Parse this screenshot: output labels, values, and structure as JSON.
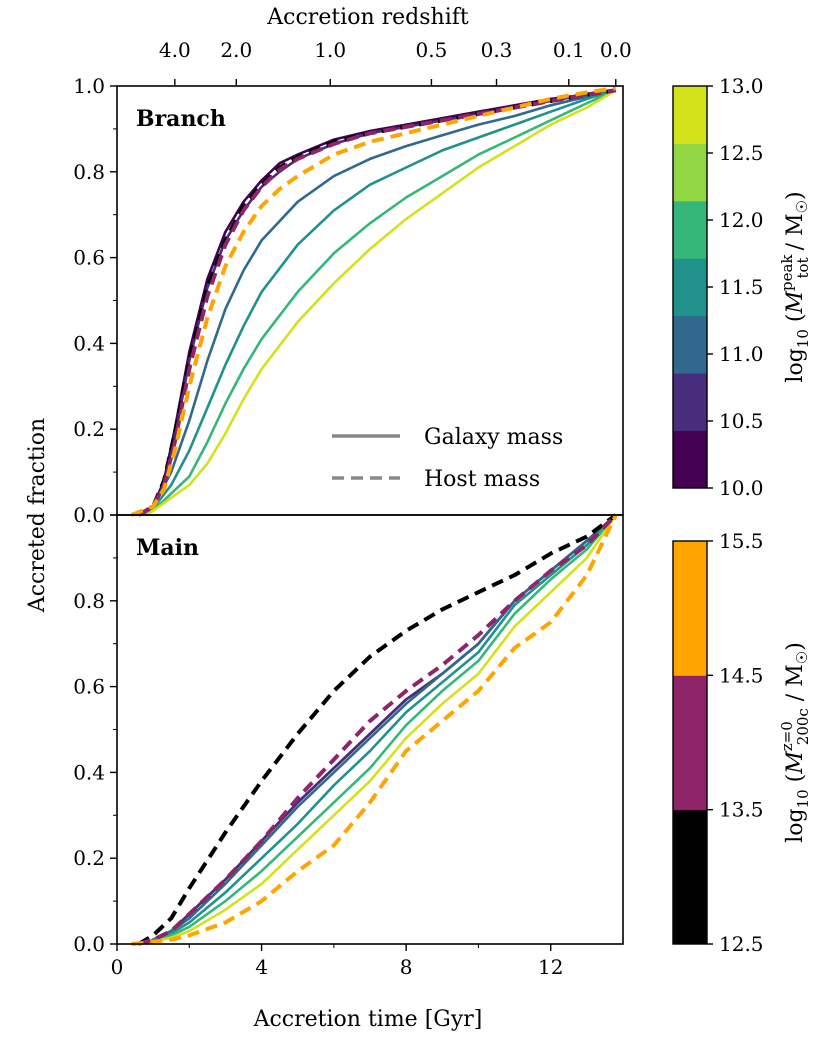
{
  "chart_data": {
    "type": "line",
    "xlabel": "Accretion time [Gyr]",
    "ylabel": "Accreted fraction",
    "top_axis_label": "Accretion redshift",
    "xlim": [
      0,
      14
    ],
    "ylim": [
      0.0,
      1.0
    ],
    "x_ticks": [
      0,
      4,
      8,
      12
    ],
    "x_tick_labels": [
      "0",
      "4",
      "8",
      "12"
    ],
    "y_ticks": [
      0.0,
      0.2,
      0.4,
      0.6,
      0.8,
      1.0
    ],
    "y_tick_labels": [
      "0.0",
      "0.2",
      "0.4",
      "0.6",
      "0.8",
      "1.0"
    ],
    "top_ticks": [
      {
        "label": "4.0",
        "x": 1.6
      },
      {
        "label": "2.0",
        "x": 3.3
      },
      {
        "label": "1.0",
        "x": 5.9
      },
      {
        "label": "0.5",
        "x": 8.7
      },
      {
        "label": "0.3",
        "x": 10.5
      },
      {
        "label": "0.1",
        "x": 12.5
      },
      {
        "label": "0.0",
        "x": 13.8
      }
    ],
    "legend": [
      {
        "label": "Galaxy mass",
        "style": "solid"
      },
      {
        "label": "Host mass",
        "style": "dashed"
      }
    ],
    "colorbars": [
      {
        "label_parts": [
          "log",
          "10",
          " (",
          "M",
          "peak",
          "tot",
          " / M",
          "☉",
          ")"
        ],
        "ticks": [
          "10.0",
          "10.5",
          "11.0",
          "11.5",
          "12.0",
          "12.5",
          "13.0"
        ],
        "colors": [
          "#440154",
          "#472d7b",
          "#31688e",
          "#21918c",
          "#35b779",
          "#90d743",
          "#d4e21a"
        ]
      },
      {
        "label_parts": [
          "log",
          "10",
          " (",
          "M",
          "z=0",
          "200c",
          " / M",
          "☉",
          ")"
        ],
        "ticks": [
          "12.5",
          "13.5",
          "14.5",
          "15.5"
        ],
        "colors": [
          "#000000",
          "#8f2469",
          "#ffa500"
        ]
      }
    ],
    "panels": [
      {
        "label": "Branch",
        "series": [
          {
            "name": "galaxy 10.0-10.5",
            "color": "#440154",
            "style": "solid",
            "x": [
              0.7,
              1.0,
              1.3,
              1.6,
              2.0,
              2.5,
              3.0,
              3.5,
              4.0,
              4.5,
              5.0,
              6.0,
              7.0,
              8.0,
              9.0,
              10.0,
              11.0,
              12.0,
              13.0,
              13.8
            ],
            "y": [
              0,
              0.02,
              0.08,
              0.2,
              0.38,
              0.55,
              0.66,
              0.73,
              0.78,
              0.82,
              0.84,
              0.875,
              0.895,
              0.91,
              0.925,
              0.94,
              0.955,
              0.97,
              0.98,
              0.99
            ]
          },
          {
            "name": "galaxy 10.5-11.0",
            "color": "#472d7b",
            "style": "solid",
            "x": [
              0.7,
              1.0,
              1.3,
              1.6,
              2.0,
              2.5,
              3.0,
              3.5,
              4.0,
              4.5,
              5.0,
              6.0,
              7.0,
              8.0,
              9.0,
              10.0,
              11.0,
              12.0,
              13.0,
              13.8
            ],
            "y": [
              0,
              0.02,
              0.07,
              0.18,
              0.36,
              0.53,
              0.64,
              0.71,
              0.765,
              0.8,
              0.83,
              0.865,
              0.89,
              0.905,
              0.92,
              0.935,
              0.95,
              0.965,
              0.98,
              0.99
            ]
          },
          {
            "name": "galaxy 11.0-11.5",
            "color": "#31688e",
            "style": "solid",
            "x": [
              0.8,
              1.0,
              1.5,
              2.0,
              2.5,
              3.0,
              3.5,
              4.0,
              5.0,
              6.0,
              7.0,
              8.0,
              9.0,
              10.0,
              11.0,
              12.0,
              13.0,
              13.8
            ],
            "y": [
              0,
              0.02,
              0.1,
              0.22,
              0.36,
              0.48,
              0.57,
              0.64,
              0.73,
              0.79,
              0.83,
              0.86,
              0.885,
              0.91,
              0.93,
              0.955,
              0.975,
              0.99
            ]
          },
          {
            "name": "galaxy 11.5-12.0",
            "color": "#21918c",
            "style": "solid",
            "x": [
              0.8,
              1.0,
              1.5,
              2.0,
              2.5,
              3.0,
              3.5,
              4.0,
              5.0,
              6.0,
              7.0,
              8.0,
              9.0,
              10.0,
              11.0,
              12.0,
              13.0,
              13.8
            ],
            "y": [
              0,
              0.015,
              0.07,
              0.15,
              0.25,
              0.35,
              0.44,
              0.52,
              0.63,
              0.71,
              0.77,
              0.81,
              0.85,
              0.88,
              0.91,
              0.94,
              0.97,
              0.99
            ]
          },
          {
            "name": "galaxy 12.0-12.5",
            "color": "#35b779",
            "style": "solid",
            "x": [
              0.8,
              1.0,
              1.5,
              2.0,
              2.5,
              3.0,
              3.5,
              4.0,
              5.0,
              6.0,
              7.0,
              8.0,
              9.0,
              10.0,
              11.0,
              12.0,
              13.0,
              13.8
            ],
            "y": [
              0,
              0.01,
              0.05,
              0.09,
              0.17,
              0.26,
              0.34,
              0.41,
              0.52,
              0.61,
              0.68,
              0.74,
              0.79,
              0.84,
              0.88,
              0.92,
              0.96,
              0.99
            ]
          },
          {
            "name": "galaxy 12.5-13.0",
            "color": "#d4e21a",
            "style": "solid",
            "x": [
              0.8,
              1.0,
              1.5,
              2.0,
              2.5,
              3.0,
              3.5,
              4.0,
              5.0,
              6.0,
              7.0,
              8.0,
              9.0,
              10.0,
              11.0,
              12.0,
              13.0,
              13.8
            ],
            "y": [
              0,
              0.01,
              0.04,
              0.07,
              0.12,
              0.19,
              0.27,
              0.34,
              0.45,
              0.54,
              0.62,
              0.69,
              0.75,
              0.81,
              0.86,
              0.91,
              0.95,
              0.99
            ]
          },
          {
            "name": "host 12.5-13.5",
            "color": "#000000",
            "style": "dashed",
            "x": [
              0.6,
              1.0,
              1.3,
              1.6,
              2.0,
              2.5,
              3.0,
              3.5,
              4.0,
              4.5,
              5.0,
              6.0,
              7.0,
              8.0,
              9.0,
              10.0,
              11.0,
              12.0,
              13.0,
              13.8
            ],
            "y": [
              0,
              0.02,
              0.08,
              0.19,
              0.36,
              0.53,
              0.64,
              0.72,
              0.77,
              0.81,
              0.835,
              0.87,
              0.89,
              0.905,
              0.92,
              0.935,
              0.95,
              0.965,
              0.98,
              0.99
            ]
          },
          {
            "name": "host 13.5-14.5",
            "color": "#8f2469",
            "style": "dashed",
            "x": [
              0.6,
              1.0,
              1.3,
              1.6,
              2.0,
              2.5,
              3.0,
              3.5,
              4.0,
              4.5,
              5.0,
              6.0,
              7.0,
              8.0,
              9.0,
              10.0,
              11.0,
              12.0,
              13.0,
              13.8
            ],
            "y": [
              0,
              0.02,
              0.07,
              0.17,
              0.34,
              0.51,
              0.63,
              0.71,
              0.765,
              0.805,
              0.83,
              0.865,
              0.89,
              0.905,
              0.92,
              0.935,
              0.95,
              0.965,
              0.98,
              0.99
            ]
          },
          {
            "name": "host 14.5-15.5",
            "color": "#ffa500",
            "style": "dashed",
            "x": [
              0.4,
              1.0,
              1.3,
              1.6,
              2.0,
              2.5,
              3.0,
              3.5,
              4.0,
              4.5,
              5.0,
              6.0,
              7.0,
              8.0,
              9.0,
              10.0,
              11.0,
              12.0,
              13.0,
              13.8
            ],
            "y": [
              0,
              0.02,
              0.06,
              0.15,
              0.3,
              0.46,
              0.58,
              0.66,
              0.72,
              0.76,
              0.79,
              0.84,
              0.87,
              0.89,
              0.91,
              0.93,
              0.95,
              0.97,
              0.985,
              0.995
            ]
          }
        ]
      },
      {
        "label": "Main",
        "series": [
          {
            "name": "galaxy 10.0-10.5",
            "color": "#440154",
            "style": "solid",
            "x": [
              0.8,
              1.0,
              1.5,
              2.0,
              3.0,
              4.0,
              5.0,
              6.0,
              7.0,
              7.5,
              8.0,
              9.0,
              10.0,
              11.0,
              12.0,
              13.0,
              13.8
            ],
            "y": [
              0,
              0.01,
              0.03,
              0.07,
              0.15,
              0.24,
              0.33,
              0.41,
              0.49,
              0.53,
              0.57,
              0.63,
              0.7,
              0.8,
              0.87,
              0.94,
              1.0
            ]
          },
          {
            "name": "galaxy 10.5-11.0",
            "color": "#472d7b",
            "style": "solid",
            "x": [
              0.8,
              1.0,
              1.5,
              2.0,
              3.0,
              4.0,
              5.0,
              6.0,
              7.0,
              7.5,
              8.0,
              9.0,
              10.0,
              11.0,
              12.0,
              13.0,
              13.8
            ],
            "y": [
              0,
              0.01,
              0.03,
              0.07,
              0.15,
              0.24,
              0.33,
              0.41,
              0.49,
              0.53,
              0.57,
              0.63,
              0.7,
              0.8,
              0.87,
              0.94,
              1.0
            ]
          },
          {
            "name": "galaxy 11.0-11.5",
            "color": "#31688e",
            "style": "solid",
            "x": [
              0.8,
              1.0,
              1.5,
              2.0,
              3.0,
              4.0,
              5.0,
              6.0,
              7.0,
              8.0,
              9.0,
              10.0,
              11.0,
              12.0,
              13.0,
              13.8
            ],
            "y": [
              0,
              0.01,
              0.03,
              0.06,
              0.14,
              0.23,
              0.32,
              0.4,
              0.48,
              0.56,
              0.63,
              0.7,
              0.8,
              0.87,
              0.94,
              1.0
            ]
          },
          {
            "name": "galaxy 11.5-12.0",
            "color": "#21918c",
            "style": "solid",
            "x": [
              0.8,
              1.0,
              1.5,
              2.0,
              3.0,
              4.0,
              5.0,
              6.0,
              7.0,
              8.0,
              9.0,
              10.0,
              11.0,
              12.0,
              13.0,
              13.8
            ],
            "y": [
              0,
              0.01,
              0.025,
              0.05,
              0.12,
              0.2,
              0.28,
              0.37,
              0.45,
              0.54,
              0.61,
              0.68,
              0.79,
              0.86,
              0.93,
              1.0
            ]
          },
          {
            "name": "galaxy 12.0-12.5",
            "color": "#35b779",
            "style": "solid",
            "x": [
              0.8,
              1.0,
              1.5,
              2.0,
              3.0,
              4.0,
              5.0,
              6.0,
              7.0,
              8.0,
              9.0,
              10.0,
              11.0,
              12.0,
              13.0,
              13.8
            ],
            "y": [
              0,
              0.005,
              0.02,
              0.04,
              0.1,
              0.17,
              0.25,
              0.33,
              0.41,
              0.51,
              0.59,
              0.66,
              0.77,
              0.85,
              0.92,
              1.0
            ]
          },
          {
            "name": "galaxy 12.5-13.0",
            "color": "#d4e21a",
            "style": "solid",
            "x": [
              0.8,
              1.0,
              1.5,
              2.0,
              3.0,
              4.0,
              5.0,
              6.0,
              7.0,
              8.0,
              9.0,
              10.0,
              11.0,
              12.0,
              13.0,
              13.8
            ],
            "y": [
              0,
              0.005,
              0.015,
              0.03,
              0.08,
              0.14,
              0.22,
              0.3,
              0.38,
              0.48,
              0.56,
              0.63,
              0.74,
              0.82,
              0.9,
              1.0
            ]
          },
          {
            "name": "host 12.5-13.5",
            "color": "#000000",
            "style": "dashed",
            "x": [
              0.6,
              1.0,
              1.5,
              2.0,
              3.0,
              4.0,
              5.0,
              6.0,
              7.0,
              8.0,
              9.0,
              10.0,
              11.0,
              12.0,
              13.0,
              13.8
            ],
            "y": [
              0,
              0.02,
              0.06,
              0.13,
              0.26,
              0.38,
              0.49,
              0.59,
              0.67,
              0.73,
              0.78,
              0.82,
              0.86,
              0.91,
              0.95,
              1.0
            ]
          },
          {
            "name": "host 13.5-14.5",
            "color": "#8f2469",
            "style": "dashed",
            "x": [
              0.6,
              1.0,
              1.5,
              2.0,
              3.0,
              4.0,
              5.0,
              6.0,
              7.0,
              8.0,
              9.0,
              10.0,
              11.0,
              12.0,
              13.0,
              13.8
            ],
            "y": [
              0,
              0.01,
              0.03,
              0.07,
              0.15,
              0.24,
              0.34,
              0.43,
              0.52,
              0.59,
              0.65,
              0.72,
              0.8,
              0.87,
              0.93,
              1.0
            ]
          },
          {
            "name": "host 14.5-15.5",
            "color": "#ffa500",
            "style": "dashed",
            "x": [
              0.4,
              1.0,
              1.5,
              2.0,
              3.0,
              4.0,
              5.0,
              6.0,
              7.0,
              8.0,
              9.0,
              10.0,
              11.0,
              12.0,
              13.0,
              13.8
            ],
            "y": [
              0,
              0.005,
              0.01,
              0.02,
              0.05,
              0.1,
              0.17,
              0.23,
              0.33,
              0.45,
              0.52,
              0.59,
              0.69,
              0.75,
              0.86,
              1.0
            ]
          }
        ]
      }
    ]
  }
}
